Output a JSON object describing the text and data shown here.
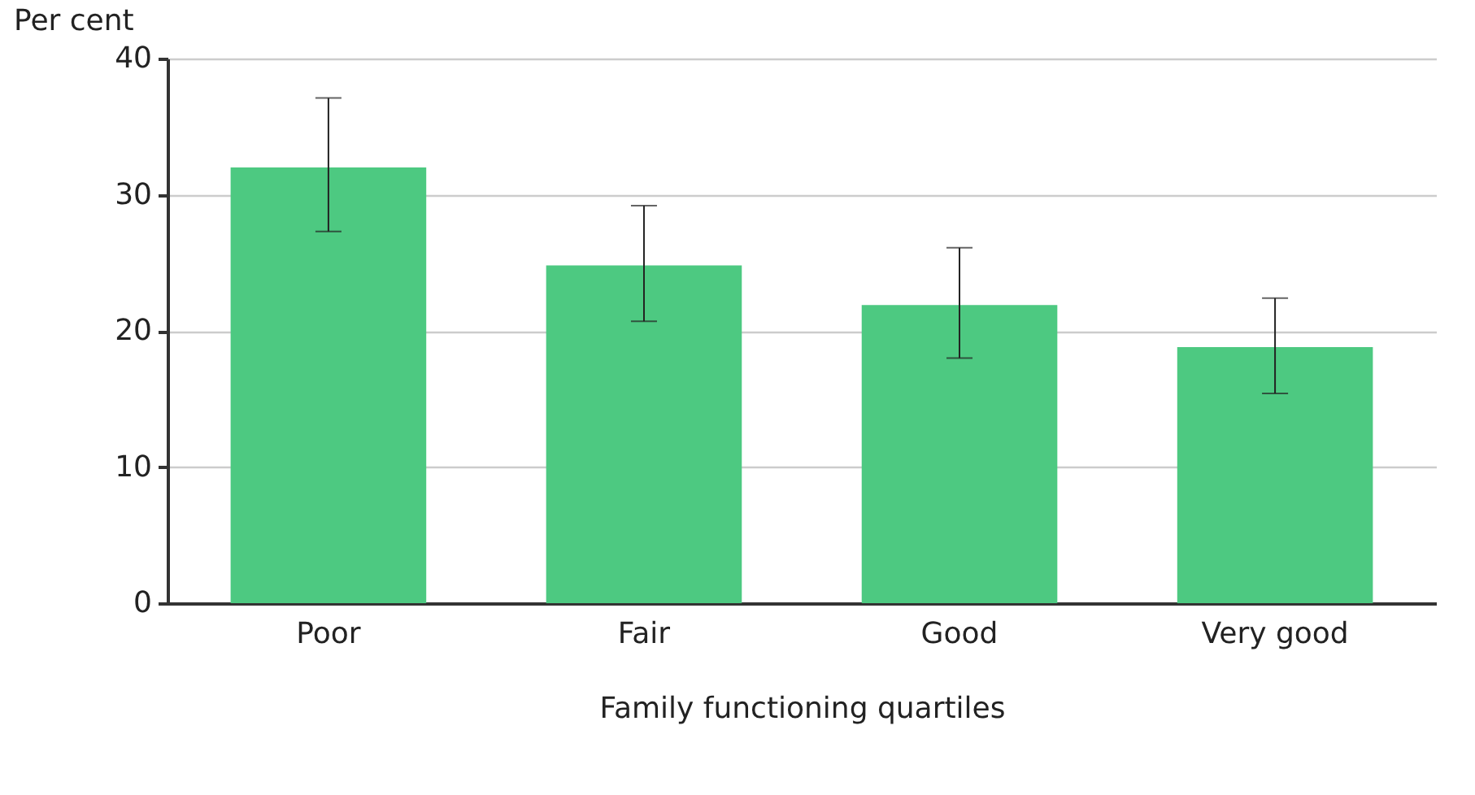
{
  "chart_data": {
    "type": "bar",
    "xlabel": "Family functioning quartiles",
    "ylabel": "Per cent",
    "categories": [
      "Poor",
      "Fair",
      "Good",
      "Very good"
    ],
    "values": [
      32.0,
      24.8,
      21.9,
      18.8
    ],
    "errors": [
      [
        27.3,
        37.1
      ],
      [
        20.7,
        29.2
      ],
      [
        18.0,
        26.1
      ],
      [
        15.4,
        22.4
      ]
    ],
    "color": "#4dc981",
    "ylim": [
      0,
      40
    ],
    "yticks": [
      0,
      10,
      20,
      30,
      40
    ],
    "grid": "y"
  }
}
